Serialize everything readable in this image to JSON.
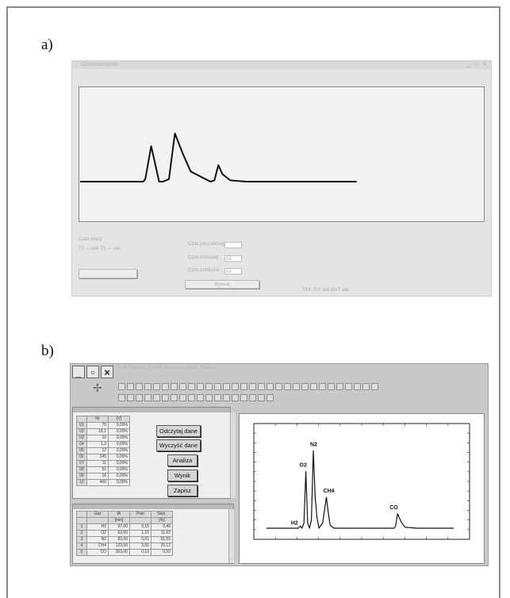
{
  "labels": {
    "a": "a)",
    "b": "b)"
  },
  "panel_a": {
    "window_title": "Chromatogram",
    "window_buttons": "_ □ ×",
    "ctl_left_title": "Czas pracy",
    "ctl_left_row": "T1  ---  sek     T2  ---  sek",
    "ctl_field1_label": "Czas poczatkowy",
    "ctl_field2_label": "Czas koncowy",
    "ctl_field3_label": "Czas przejscia",
    "ctl_field1_value": "",
    "ctl_field2_value": "0.0",
    "ctl_field3_value": "0.0",
    "ctl_button": "Wykonaj",
    "status_text": "TEK: 0.0 sek  pmT sek",
    "left_button": ""
  },
  "panel_b": {
    "menu": "Plik  Edycja  Widok  Analiza  Okno  Pomoc",
    "table1": {
      "headers": [
        "",
        "Nr",
        "[V]"
      ],
      "rows": [
        [
          "01",
          "70",
          "0,00%"
        ],
        [
          "02",
          "18,1",
          "0,00%"
        ],
        [
          "03",
          "10",
          "0,00%"
        ],
        [
          "04",
          "1,3",
          "0,00%"
        ],
        [
          "05",
          "12",
          "0,00%"
        ],
        [
          "06",
          "245",
          "0,00%"
        ],
        [
          "07",
          "11",
          "0,00%"
        ],
        [
          "08",
          "51",
          "0,00%"
        ],
        [
          "09",
          "18",
          "0,00%"
        ],
        [
          "10",
          "460",
          "0,00%"
        ]
      ]
    },
    "buttons": [
      "Odczytaj dane",
      "Wyczyść dane",
      "Analiza",
      "Wynik",
      "Zapisz"
    ],
    "table2": {
      "headers": [
        "",
        "Gaz",
        "tR",
        "Pole",
        "Stęż."
      ],
      "subheaders": [
        "",
        "",
        "[min]",
        "",
        "[%]"
      ],
      "rows": [
        [
          "1",
          "H2",
          "97,00",
          "0,15",
          "0,49"
        ],
        [
          "2",
          "O2",
          "63,00",
          "1,15",
          "11,62"
        ],
        [
          "3",
          "N2",
          "83,00",
          "5,01",
          "51,55"
        ],
        [
          "4",
          "CH4",
          "123,00",
          "3,55",
          "25,12"
        ],
        [
          "5",
          "CO",
          "303,00",
          "0,10",
          "0,55"
        ]
      ]
    },
    "chart_peaks": [
      "H2",
      "O2",
      "N2",
      "CH4",
      "CO"
    ]
  },
  "chart_data": [
    {
      "type": "line",
      "title": "",
      "xlabel": "",
      "ylabel": "",
      "series": [
        {
          "x": [
            0,
            16,
            16.5,
            18,
            20,
            21,
            22.5,
            24,
            26,
            28,
            33,
            34,
            35,
            36,
            38,
            42,
            50,
            60,
            70,
            80,
            85,
            86,
            87,
            88,
            89,
            90,
            95,
            100
          ],
          "y": [
            0,
            0,
            2,
            28,
            0,
            0,
            2,
            38,
            22,
            8,
            0,
            1,
            13,
            6,
            1,
            0,
            0,
            0,
            0,
            0,
            0,
            0.5,
            4,
            2,
            0.5,
            0,
            0,
            0
          ]
        }
      ]
    },
    {
      "type": "line",
      "title": "",
      "xlabel": "",
      "ylabel": "",
      "annotations": [
        "H2",
        "O2",
        "N2",
        "CH4",
        "CO"
      ],
      "series": [
        {
          "x": [
            0,
            17,
            18,
            19,
            20,
            21,
            22,
            23,
            24,
            25,
            26,
            27,
            28,
            30,
            32,
            33,
            34,
            36,
            40,
            60,
            68,
            69,
            70,
            72,
            74,
            80,
            100
          ],
          "y": [
            0,
            0,
            2,
            0,
            5,
            55,
            5,
            0,
            8,
            75,
            30,
            10,
            0,
            5,
            30,
            15,
            3,
            0,
            0,
            0,
            0,
            2,
            14,
            6,
            1,
            0,
            0
          ]
        }
      ]
    }
  ]
}
